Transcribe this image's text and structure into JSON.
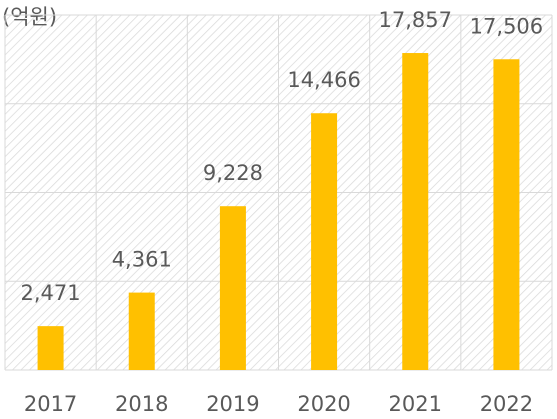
{
  "chart_data": {
    "type": "bar",
    "y_label": "(억원)",
    "categories": [
      "2017",
      "2018",
      "2019",
      "2020",
      "2021",
      "2022"
    ],
    "values": [
      2471,
      4361,
      9228,
      14466,
      17857,
      17506
    ],
    "value_labels": [
      "2,471",
      "4,361",
      "9,228",
      "14,466",
      "17,857",
      "17,506"
    ],
    "color": "#ffc000",
    "ylim": [
      0,
      20000
    ],
    "yticks": [
      0,
      5000,
      10000,
      15000,
      20000
    ],
    "grid": true
  }
}
